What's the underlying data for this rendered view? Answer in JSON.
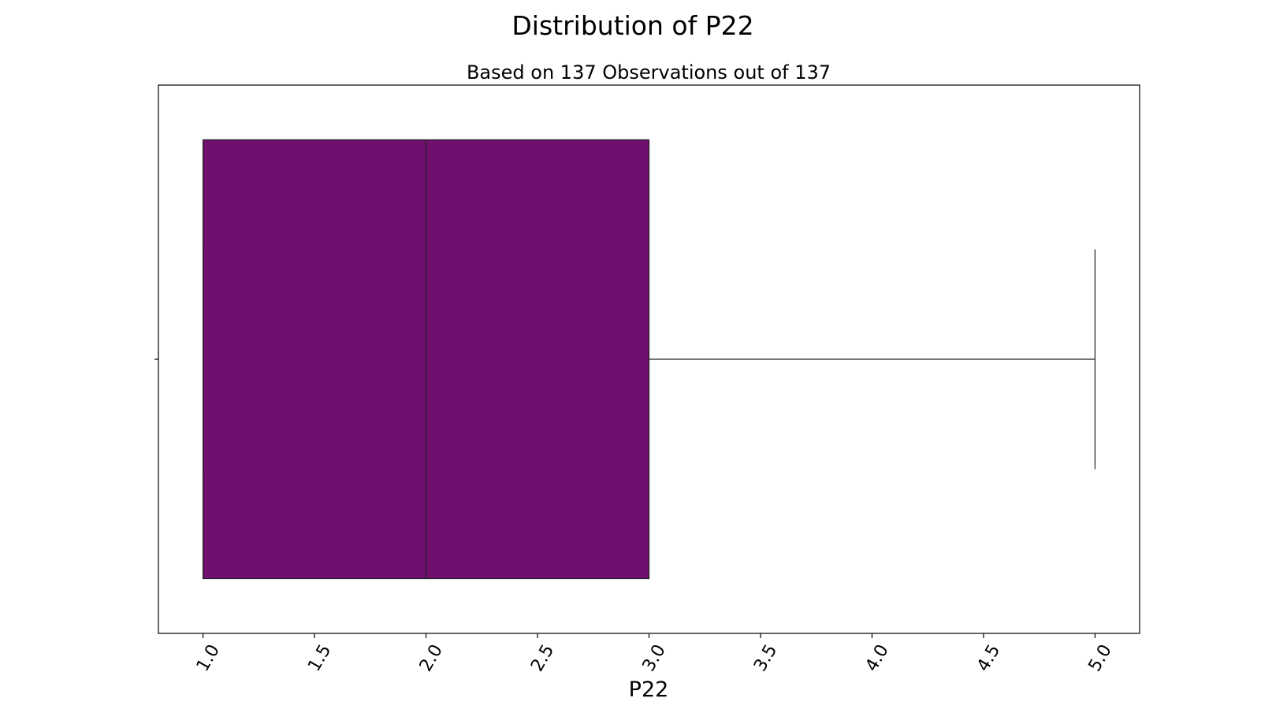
{
  "chart_data": {
    "type": "box",
    "title": "Distribution of P22",
    "subtitle": "Based on 137 Observations out of 137",
    "xlabel": "P22",
    "ylabel": "",
    "orientation": "horizontal",
    "xlim": [
      0.8,
      5.2
    ],
    "xticks": [
      1.0,
      1.5,
      2.0,
      2.5,
      3.0,
      3.5,
      4.0,
      4.5,
      5.0
    ],
    "xtick_labels": [
      "1.0",
      "1.5",
      "2.0",
      "2.5",
      "3.0",
      "3.5",
      "4.0",
      "4.5",
      "5.0"
    ],
    "tick_label_rotation": 60,
    "grid": false,
    "box": {
      "whisker_low": 1.0,
      "q1": 1.0,
      "median": 2.0,
      "q3": 3.0,
      "whisker_high": 5.0
    },
    "colors": {
      "box_fill": "#6f106e",
      "line": "#222222",
      "frame": "#000000"
    }
  }
}
